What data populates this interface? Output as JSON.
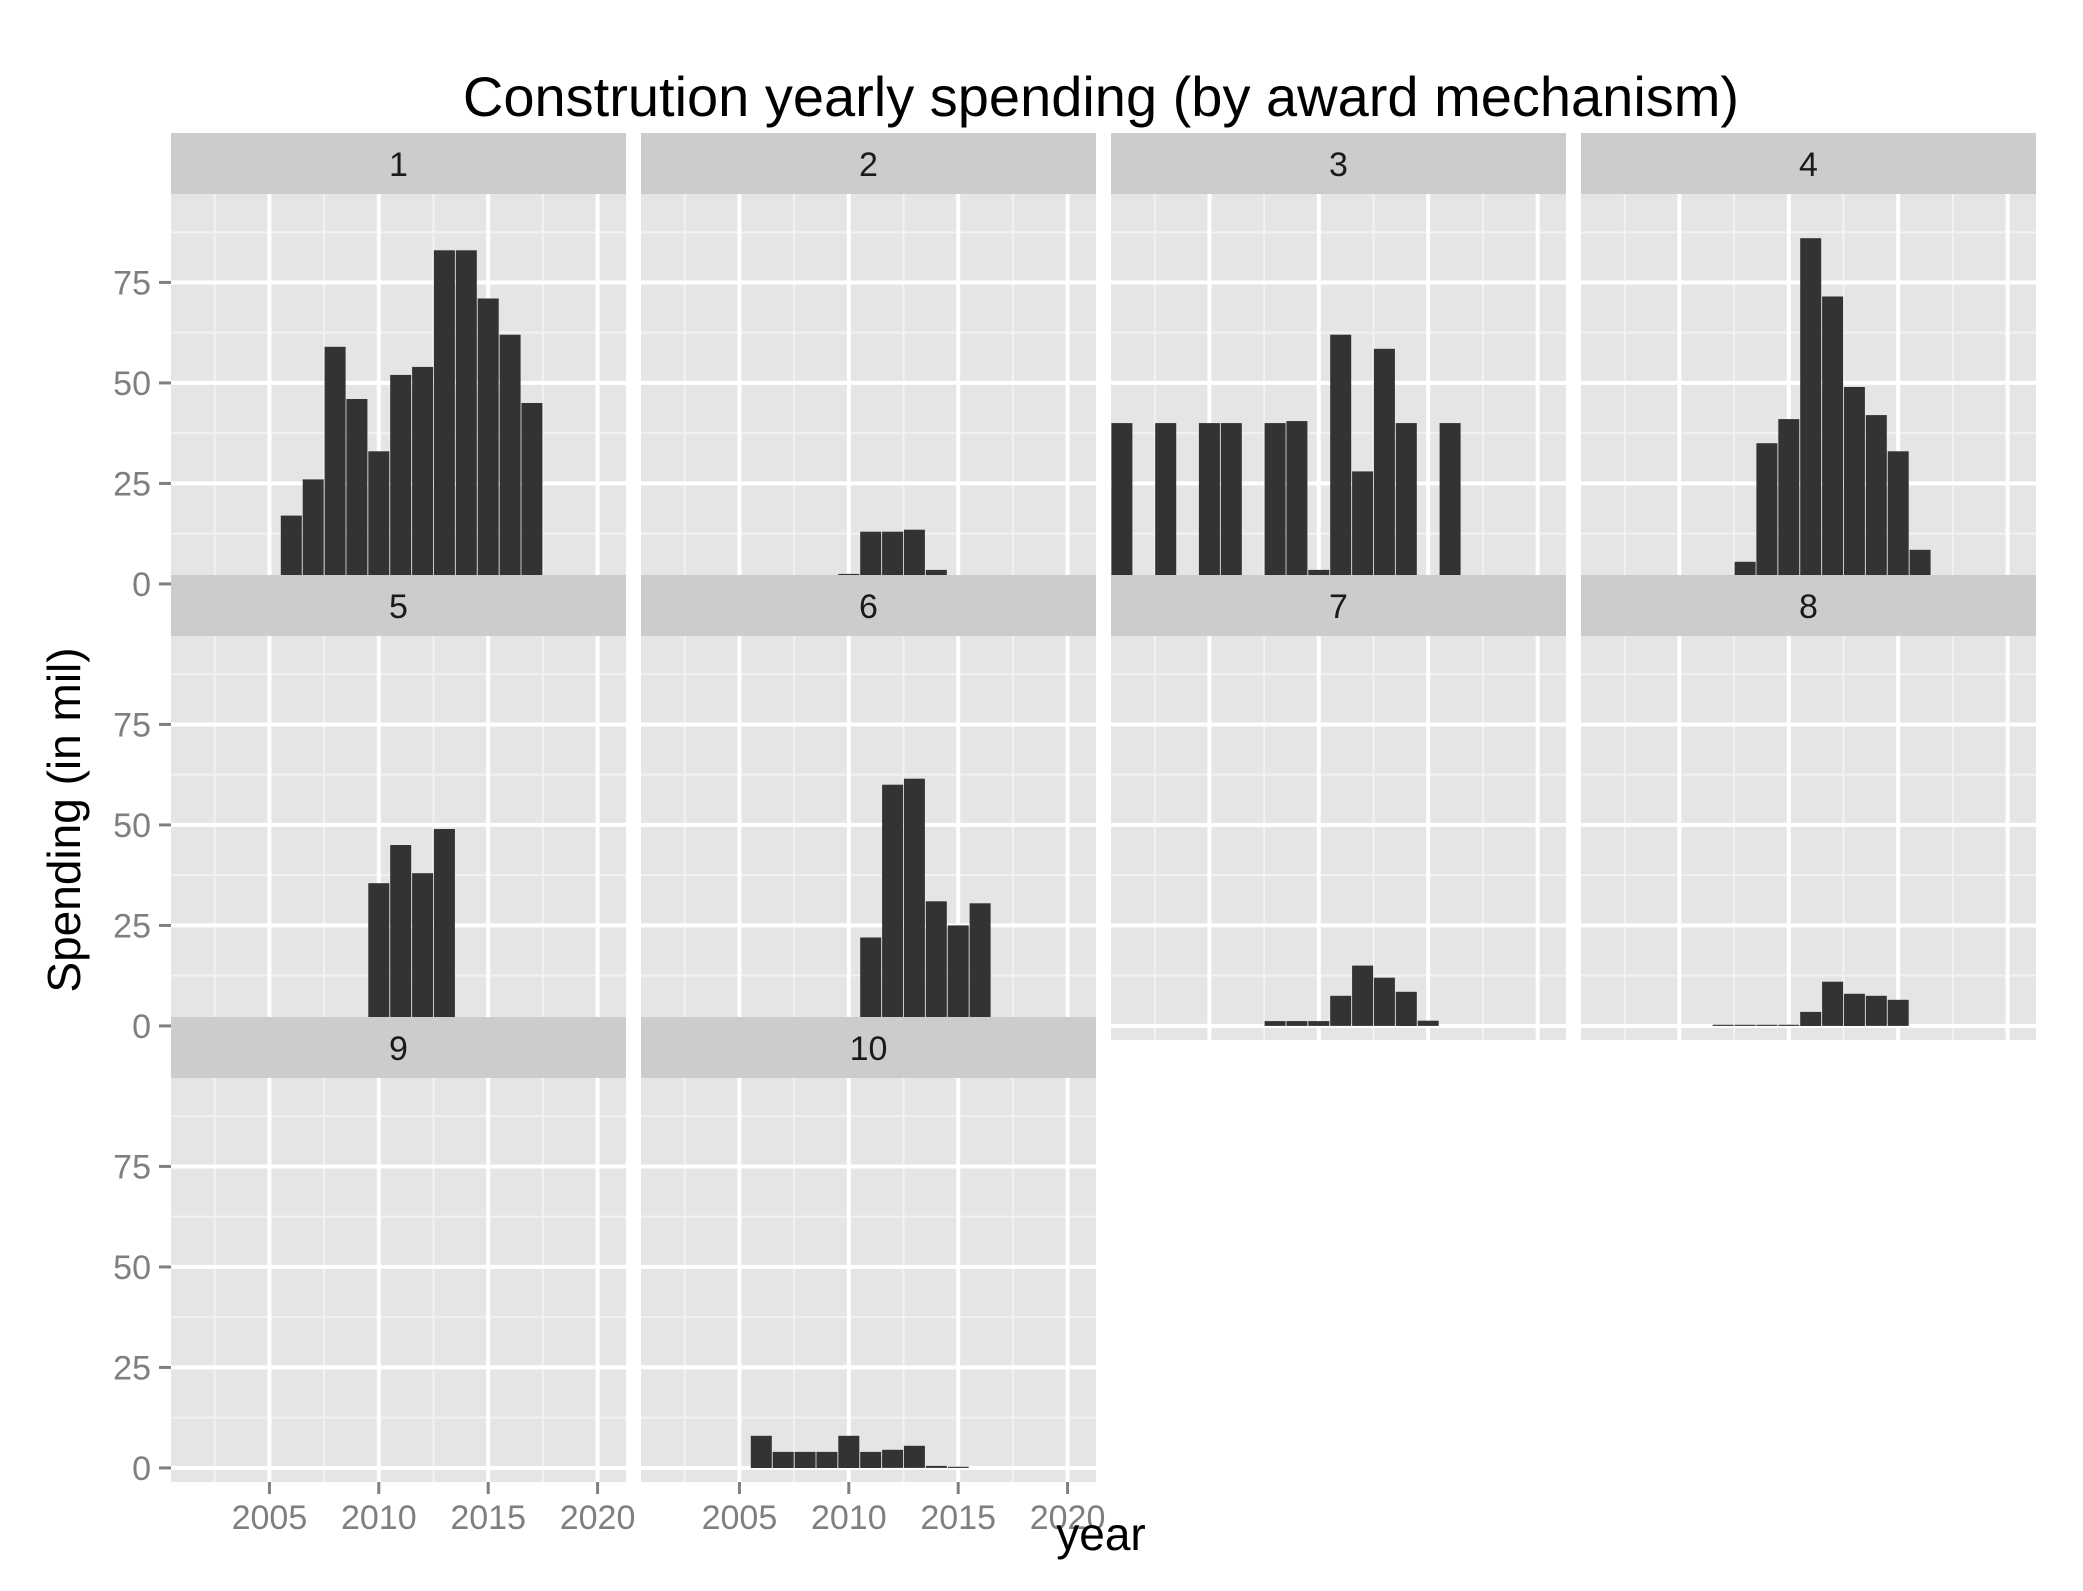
{
  "chart_data": {
    "type": "bar",
    "title": "Constrution yearly spending (by award mechanism)",
    "xlabel": "year",
    "ylabel": "Spending (in mil)",
    "xlim": [
      2000.5,
      2021.3
    ],
    "ylim": [
      -3.5,
      97
    ],
    "x_ticks": [
      2005,
      2010,
      2015,
      2020
    ],
    "y_ticks": [
      0,
      25,
      50,
      75
    ],
    "grid": true,
    "legend": "none",
    "colors": {
      "bar": "#333333",
      "panel": "#e5e5e5",
      "strip": "#cccccc",
      "grid_major": "#ffffff",
      "grid_minor": "#f2f2f2",
      "tick_label": "#7f7f7f"
    },
    "panels": [
      {
        "label": "1",
        "x": [
          2006,
          2007,
          2008,
          2009,
          2010,
          2011,
          2012,
          2013,
          2014,
          2015,
          2016,
          2017
        ],
        "values": [
          17,
          26,
          59,
          46,
          33,
          52,
          54,
          83,
          83,
          71,
          62,
          45
        ]
      },
      {
        "label": "2",
        "x": [
          2009,
          2010,
          2011,
          2012,
          2013,
          2014,
          2015,
          2016
        ],
        "values": [
          1,
          2.5,
          13,
          13,
          13.5,
          3.5,
          1,
          0.3
        ]
      },
      {
        "label": "3",
        "x": [
          2001,
          2003,
          2005,
          2006,
          2008,
          2009,
          2010,
          2011,
          2012,
          2013,
          2014,
          2016
        ],
        "values": [
          40,
          40,
          40,
          40,
          40,
          40.5,
          3.5,
          62,
          28,
          58.5,
          40,
          40
        ]
      },
      {
        "label": "4",
        "x": [
          2006,
          2007,
          2008,
          2009,
          2010,
          2011,
          2012,
          2013,
          2014,
          2015,
          2016,
          2017
        ],
        "values": [
          1,
          1.2,
          5.5,
          35,
          41,
          86,
          71.5,
          49,
          42,
          33,
          8.5,
          1.5
        ]
      },
      {
        "label": "5",
        "x": [
          2009,
          2010,
          2011,
          2012,
          2013
        ],
        "values": [
          1.5,
          35.5,
          45,
          38,
          49
        ]
      },
      {
        "label": "6",
        "x": [
          2011,
          2012,
          2013,
          2014,
          2015,
          2016
        ],
        "values": [
          22,
          60,
          61.5,
          31,
          25,
          30.5
        ]
      },
      {
        "label": "7",
        "x": [
          2008,
          2009,
          2010,
          2011,
          2012,
          2013,
          2014,
          2015
        ],
        "values": [
          1.2,
          1.2,
          1.2,
          7.5,
          15,
          12,
          8.5,
          1.3
        ]
      },
      {
        "label": "8",
        "x": [
          2007,
          2008,
          2009,
          2010,
          2011,
          2012,
          2013,
          2014,
          2015
        ],
        "values": [
          0.3,
          0.3,
          0.3,
          0.3,
          3.5,
          11,
          8,
          7.5,
          6.5
        ]
      },
      {
        "label": "9",
        "x": [],
        "values": []
      },
      {
        "label": "10",
        "x": [
          2006,
          2007,
          2008,
          2009,
          2010,
          2011,
          2012,
          2013,
          2014,
          2015
        ],
        "values": [
          8,
          4,
          4,
          4,
          8,
          4,
          4.5,
          5.5,
          0.5,
          0.3
        ]
      }
    ]
  }
}
